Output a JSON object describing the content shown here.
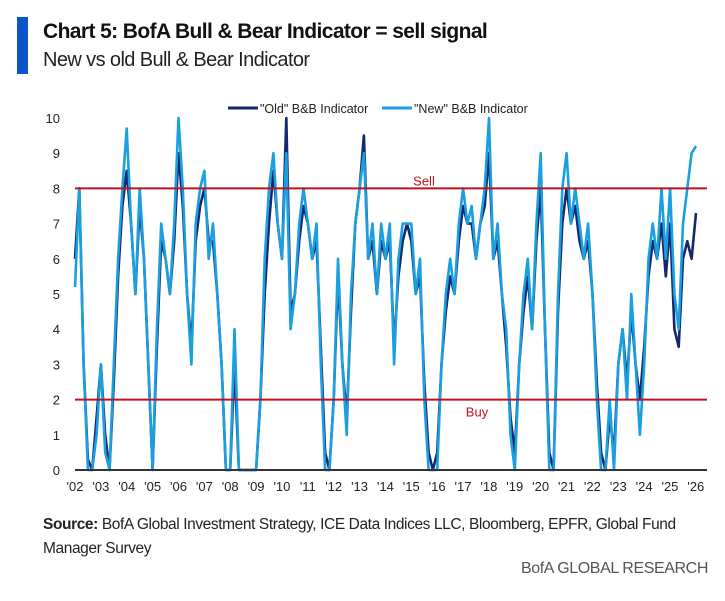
{
  "header": {
    "title": "Chart 5: BofA Bull & Bear Indicator = sell signal",
    "subtitle": "New vs old Bull & Bear Indicator"
  },
  "footer": {
    "source_label": "Source:",
    "source_text": "BofA Global Investment Strategy, ICE Data Indices LLC, Bloomberg, EPFR, Global Fund Manager Survey",
    "brand": "BofA GLOBAL RESEARCH"
  },
  "chart_data": {
    "type": "line",
    "title": "Chart 5: BofA Bull & Bear Indicator = sell signal",
    "subtitle": "New vs old Bull & Bear Indicator",
    "xlabel": "",
    "ylabel": "",
    "ylim": [
      0,
      10
    ],
    "xlim": [
      2002,
      2026.2
    ],
    "yticks": [
      "0",
      "1",
      "2",
      "3",
      "4",
      "5",
      "6",
      "7",
      "8",
      "9",
      "10"
    ],
    "xticks": [
      "'02",
      "'03",
      "'04",
      "'05",
      "'06",
      "'07",
      "'08",
      "'09",
      "'10",
      "'11",
      "'12",
      "'13",
      "'14",
      "'15",
      "'16",
      "'17",
      "'18",
      "'19",
      "'20",
      "'21",
      "'22",
      "'23",
      "'24",
      "'25",
      "'26"
    ],
    "legend_position": "top-center",
    "reference_lines": [
      {
        "label": "Sell",
        "value": 8,
        "color": "#c0111f"
      },
      {
        "label": "Buy",
        "value": 2,
        "color": "#c0111f"
      }
    ],
    "x_start": 2002,
    "x_step_years": 0.1667,
    "series": [
      {
        "name": "\"Old\" B&B Indicator",
        "color": "#14286e",
        "values": [
          6,
          8,
          3,
          0.3,
          0,
          1.5,
          3,
          1,
          0,
          2.5,
          5.5,
          7.5,
          8.5,
          7,
          5,
          7.5,
          6,
          3,
          0,
          3.5,
          6.5,
          6,
          5,
          6.5,
          9,
          7.5,
          5,
          3.5,
          6.5,
          7.5,
          8,
          6.5,
          6.5,
          5,
          3,
          0,
          0,
          3,
          0,
          0,
          0,
          0,
          0,
          2,
          5,
          7,
          8.5,
          7,
          6,
          10,
          4.5,
          5,
          6.5,
          7.5,
          7,
          6,
          6.5,
          3.5,
          0.5,
          0,
          2,
          5.5,
          3,
          1.5,
          4.5,
          7,
          8,
          9.5,
          6,
          6.5,
          5,
          6.5,
          6,
          6.5,
          3.5,
          5.5,
          6.5,
          7,
          6.5,
          5,
          5.5,
          2.5,
          0.5,
          0,
          0.5,
          3,
          4.5,
          5.5,
          5,
          6.5,
          7.5,
          7,
          7,
          6,
          7,
          7.5,
          9,
          6,
          6.5,
          5,
          3.5,
          1.5,
          0.5,
          3,
          4.5,
          5.5,
          4,
          6.5,
          8,
          4,
          0.5,
          0,
          4.5,
          7,
          8,
          7,
          7.5,
          6.5,
          6,
          6.5,
          5,
          2.5,
          0.5,
          0,
          1.5,
          0.5,
          3,
          4,
          2.5,
          4.5,
          3,
          2,
          3.5,
          5.5,
          6.5,
          6,
          7,
          5.5,
          7,
          4,
          3.5,
          6,
          6.5,
          6,
          7.3
        ]
      },
      {
        "name": "\"New\" B&B Indicator",
        "color": "#1aa0e0",
        "values": [
          5.2,
          8,
          3,
          0,
          0,
          1,
          3,
          0.5,
          0,
          3,
          6,
          8,
          9.7,
          7,
          5,
          8,
          6,
          3,
          0,
          4,
          7,
          6,
          5,
          7,
          10,
          8,
          5,
          3,
          7,
          8,
          8.5,
          6,
          7,
          5,
          3,
          0,
          0,
          4,
          0,
          0,
          0,
          0,
          0,
          2,
          6,
          8,
          9,
          7,
          6,
          9,
          4,
          5,
          7,
          8,
          7,
          6,
          7,
          3,
          0,
          0,
          2,
          6,
          3,
          1,
          5,
          7,
          8,
          9,
          6,
          7,
          5,
          7,
          6,
          7,
          3,
          6,
          7,
          7,
          7,
          5,
          6,
          2,
          0,
          0,
          0,
          3,
          5,
          6,
          5,
          7,
          8,
          7,
          7.5,
          6,
          7,
          8,
          10,
          6,
          7,
          5,
          4,
          1,
          0,
          3,
          5,
          6,
          4,
          7,
          9,
          4,
          0,
          0,
          5,
          8,
          9,
          7,
          8,
          7,
          6,
          7,
          5,
          2,
          0,
          0,
          2,
          0,
          3,
          4,
          2,
          5,
          3,
          1,
          3,
          6,
          7,
          6,
          8,
          6,
          8,
          5,
          4,
          7,
          8,
          9,
          9.2
        ]
      }
    ]
  }
}
